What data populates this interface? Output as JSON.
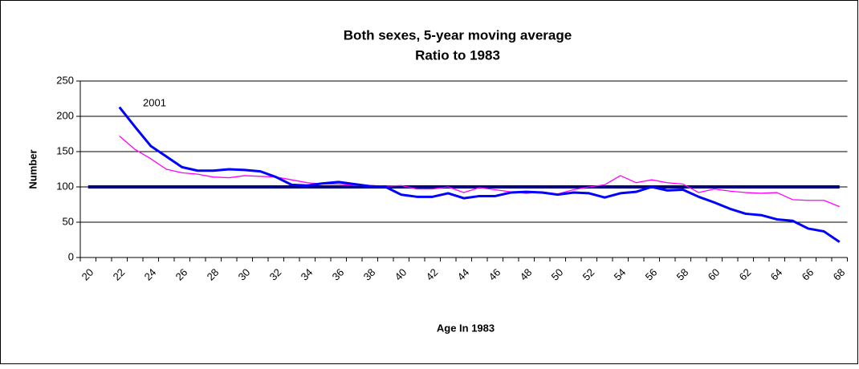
{
  "chart_data": {
    "type": "line",
    "title": "Both sexes, 5-year moving average",
    "subtitle": "Ratio to 1983",
    "x_label": "Age In 1983",
    "y_label": "Number",
    "annotation": "2001",
    "categories": [
      "20",
      null,
      "22",
      null,
      "24",
      null,
      "26",
      null,
      "28",
      null,
      "30",
      null,
      "32",
      null,
      "34",
      null,
      "36",
      null,
      "38",
      null,
      "40",
      null,
      "42",
      null,
      "44",
      null,
      "46",
      null,
      "48",
      null,
      "50",
      null,
      "52",
      null,
      "54",
      null,
      "56",
      null,
      "58",
      null,
      "60",
      null,
      "62",
      null,
      "64",
      null,
      "66",
      null,
      "68"
    ],
    "series": [
      {
        "color": "#000080",
        "width": 4,
        "values": [
          100,
          100,
          100,
          100,
          100,
          100,
          100,
          100,
          100,
          100,
          100,
          100,
          100,
          100,
          100,
          100,
          100,
          100,
          100,
          100,
          100,
          100,
          100,
          100,
          100,
          100,
          100,
          100,
          100,
          100,
          100,
          100,
          100,
          100,
          100,
          100,
          100,
          100,
          100,
          100,
          100,
          100,
          100,
          100,
          100,
          100,
          100,
          100,
          100
        ]
      },
      {
        "color": "#ff00ff",
        "width": 1.3,
        "values": [
          null,
          null,
          172,
          153,
          140,
          125,
          120,
          118,
          114,
          113,
          116,
          115,
          114,
          110,
          106,
          104,
          104,
          102,
          102,
          101,
          102,
          97,
          97,
          100,
          92,
          99,
          96,
          93,
          91,
          93,
          90,
          96,
          100,
          103,
          116,
          106,
          110,
          106,
          104,
          92,
          97,
          94,
          92,
          91,
          92,
          82,
          81,
          81,
          72
        ]
      },
      {
        "color": "#0000ff",
        "width": 3,
        "values": [
          null,
          null,
          213,
          185,
          158,
          143,
          128,
          123,
          123,
          125,
          124,
          122,
          114,
          103,
          102,
          105,
          107,
          104,
          101,
          100,
          89,
          86,
          86,
          91,
          84,
          87,
          87,
          92,
          93,
          92,
          89,
          92,
          91,
          85,
          91,
          93,
          100,
          95,
          96,
          86,
          78,
          69,
          62,
          60,
          54,
          52,
          41,
          37,
          22
        ]
      }
    ],
    "ylim": [
      0,
      250
    ],
    "yticks": [
      0,
      50,
      100,
      150,
      200,
      250
    ],
    "grid": true
  }
}
